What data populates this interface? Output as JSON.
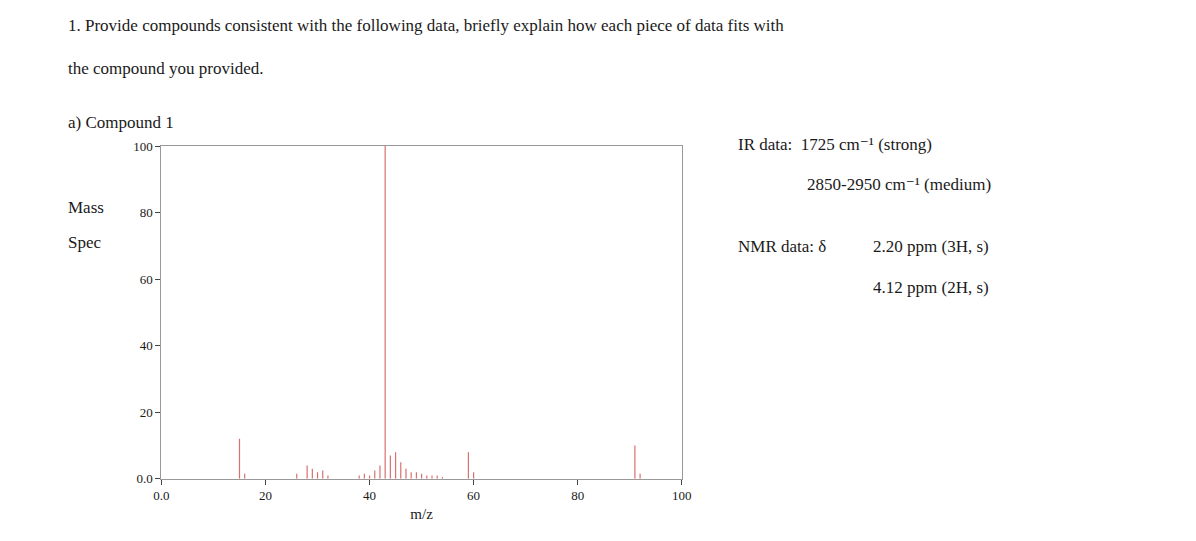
{
  "chart_data": {
    "type": "stem",
    "title": "1. Provide compounds consistent with the following data, briefly explain how each piece of data fits with\nthe compound you provided.",
    "subtitle": "a) Compound 1",
    "ylabel": "Mass\nSpec",
    "xlabel": "m/z",
    "x": [
      15,
      16,
      26,
      28,
      29,
      30,
      31,
      32,
      38,
      39,
      40,
      41,
      42,
      43,
      44,
      45,
      46,
      47,
      48,
      49,
      50,
      51,
      52,
      53,
      54,
      59,
      60,
      91,
      92
    ],
    "values": [
      12,
      1.5,
      1.5,
      4,
      3,
      2,
      2.5,
      1,
      1,
      1.5,
      1,
      2.5,
      4,
      100,
      7,
      8,
      5,
      3,
      2,
      2,
      1.5,
      1,
      1,
      1,
      0.5,
      8,
      2,
      10,
      1.5
    ],
    "color": "#d97070",
    "xlim": [
      0,
      100
    ],
    "ylim": [
      0,
      100
    ],
    "xticks": [
      {
        "value": 0,
        "label": "0.0"
      },
      20,
      40,
      60,
      80,
      100
    ],
    "yticks": [
      {
        "value": 0,
        "label": "0.0"
      },
      20,
      40,
      60,
      80,
      100
    ],
    "grid": false,
    "annotations": [
      "IR data:  1725 cm⁻¹ (strong)",
      "2850-2950 cm⁻¹ (medium)",
      "NMR data: δ",
      "2.20 ppm (3H, s)",
      "4.12 ppm (2H, s)"
    ]
  }
}
